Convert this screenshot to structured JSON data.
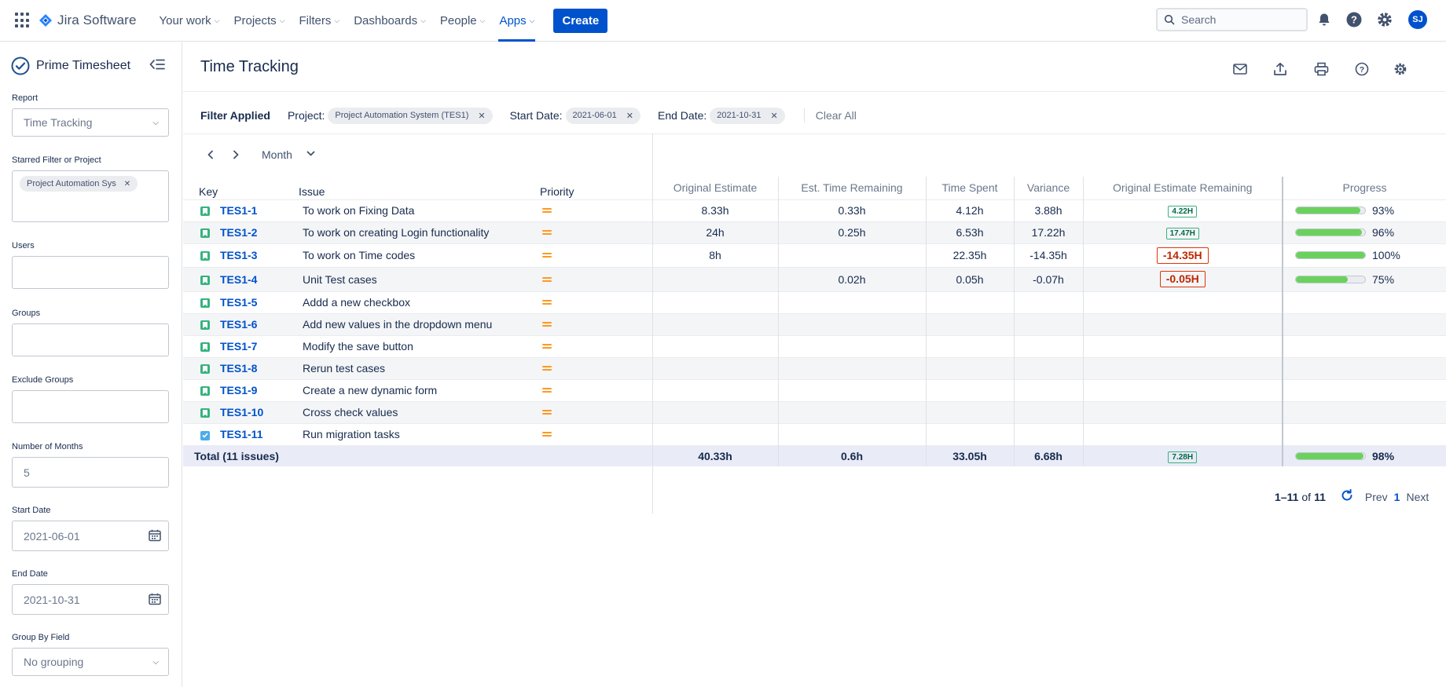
{
  "nav": {
    "logo_text": "Jira Software",
    "items": [
      {
        "label": "Your work"
      },
      {
        "label": "Projects"
      },
      {
        "label": "Filters"
      },
      {
        "label": "Dashboards"
      },
      {
        "label": "People"
      },
      {
        "label": "Apps"
      }
    ],
    "create_label": "Create",
    "search_placeholder": "Search",
    "avatar_initials": "SJ"
  },
  "sidebar": {
    "title": "Prime Timesheet",
    "report_label": "Report",
    "report_value": "Time Tracking",
    "starred_label": "Starred Filter or Project",
    "starred_chip": "Project Automation Sys",
    "users_label": "Users",
    "groups_label": "Groups",
    "exclude_groups_label": "Exclude Groups",
    "months_label": "Number of Months",
    "months_value": "5",
    "start_label": "Start Date",
    "start_value": "2021-06-01",
    "end_label": "End Date",
    "end_value": "2021-10-31",
    "groupby_label": "Group By Field",
    "groupby_value": "No grouping"
  },
  "main": {
    "title": "Time Tracking",
    "filter": {
      "applied": "Filter Applied",
      "project_label": "Project:",
      "project_value": "Project Automation System (TES1)",
      "start_label": "Start Date:",
      "start_value": "2021-06-01",
      "end_label": "End Date:",
      "end_value": "2021-10-31",
      "clear_all": "Clear All"
    },
    "period": "Month"
  },
  "table": {
    "headers": {
      "key": "Key",
      "issue": "Issue",
      "priority": "Priority",
      "orig": "Original Estimate",
      "rem": "Est. Time Remaining",
      "spent": "Time Spent",
      "variance": "Variance",
      "oer": "Original Estimate Remaining",
      "progress": "Progress"
    },
    "rows": [
      {
        "key": "TES1-1",
        "issue": "To work on Fixing Data",
        "orig": "8.33h",
        "rem": "0.33h",
        "spent": "4.12h",
        "variance": "3.88h",
        "oer": "4.22H",
        "progress": "93%"
      },
      {
        "key": "TES1-2",
        "issue": "To work on creating Login functionality",
        "orig": "24h",
        "rem": "0.25h",
        "spent": "6.53h",
        "variance": "17.22h",
        "oer": "17.47H",
        "progress": "96%"
      },
      {
        "key": "TES1-3",
        "issue": "To work on Time codes",
        "orig": "8h",
        "rem": "",
        "spent": "22.35h",
        "variance": "-14.35h",
        "oer": "-14.35H",
        "progress": "100%"
      },
      {
        "key": "TES1-4",
        "issue": "Unit Test cases",
        "orig": "",
        "rem": "0.02h",
        "spent": "0.05h",
        "variance": "-0.07h",
        "oer": "-0.05H",
        "progress": "75%"
      },
      {
        "key": "TES1-5",
        "issue": "Addd a new checkbox"
      },
      {
        "key": "TES1-6",
        "issue": "Add new values in the dropdown menu"
      },
      {
        "key": "TES1-7",
        "issue": "Modify the save button"
      },
      {
        "key": "TES1-8",
        "issue": "Rerun test cases"
      },
      {
        "key": "TES1-9",
        "issue": "Create a new dynamic form"
      },
      {
        "key": "TES1-10",
        "issue": "Cross check values"
      },
      {
        "key": "TES1-11",
        "issue": "Run migration tasks"
      }
    ],
    "progress_fractions": [
      0.93,
      0.96,
      1.0,
      0.75
    ],
    "total": {
      "label": "Total (11 issues)",
      "orig": "40.33h",
      "rem": "0.6h",
      "spent": "33.05h",
      "variance": "6.68h",
      "oer": "7.28H",
      "progress": "98%",
      "progress_fraction": 0.98
    }
  },
  "pager": {
    "range": "1–11",
    "of": "of",
    "count": "11",
    "prev": "Prev",
    "page": "1",
    "next": "Next"
  },
  "colors": {
    "brand": "#0052cc",
    "progress": "#6ad25c",
    "negative": "#de350b",
    "priority_medium": "#ff991f"
  }
}
